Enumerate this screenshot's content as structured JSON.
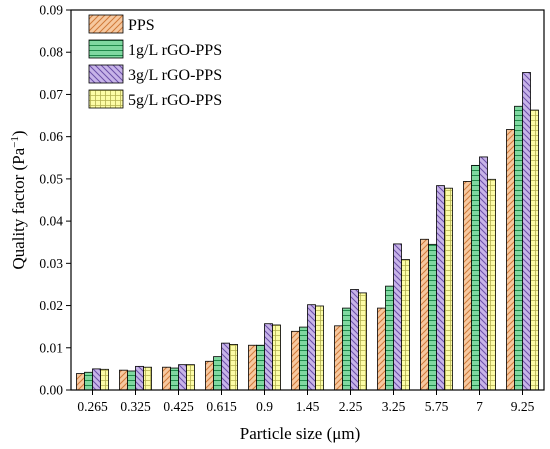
{
  "chart_data": {
    "type": "bar",
    "xlabel": "Particle size (μm)",
    "ylabel_main": "Quality factor (Pa",
    "ylabel_sup": "−1",
    "ylabel_close": ")",
    "categories": [
      "0.265",
      "0.325",
      "0.425",
      "0.615",
      "0.9",
      "1.45",
      "2.25",
      "3.25",
      "5.75",
      "7",
      "9.25"
    ],
    "ylim": [
      0,
      0.09
    ],
    "yticks": [
      "0.00",
      "0.01",
      "0.02",
      "0.03",
      "0.04",
      "0.05",
      "0.06",
      "0.07",
      "0.08",
      "0.09"
    ],
    "legend_position": "top-left",
    "grid": false,
    "series": [
      {
        "name": "PPS",
        "color": "#f6c89f",
        "pattern": "diag-forward",
        "values": [
          0.0039,
          0.0047,
          0.0054,
          0.0068,
          0.0106,
          0.0139,
          0.0152,
          0.0194,
          0.0357,
          0.0494,
          0.0617
        ]
      },
      {
        "name": "1g/L rGO-PPS",
        "color": "#7fd8a0",
        "pattern": "vertical",
        "values": [
          0.0042,
          0.0045,
          0.0052,
          0.0079,
          0.0106,
          0.0149,
          0.0194,
          0.0246,
          0.0345,
          0.0532,
          0.0672
        ]
      },
      {
        "name": "3g/L rGO-PPS",
        "color": "#c7b3e8",
        "pattern": "diag-back",
        "values": [
          0.005,
          0.0056,
          0.006,
          0.0111,
          0.0157,
          0.0202,
          0.0238,
          0.0346,
          0.0484,
          0.0552,
          0.0752
        ]
      },
      {
        "name": "5g/L rGO-PPS",
        "color": "#fcfca6",
        "pattern": "grid",
        "values": [
          0.0049,
          0.0054,
          0.006,
          0.0108,
          0.0154,
          0.0199,
          0.023,
          0.0309,
          0.0478,
          0.0499,
          0.0663
        ]
      }
    ]
  }
}
